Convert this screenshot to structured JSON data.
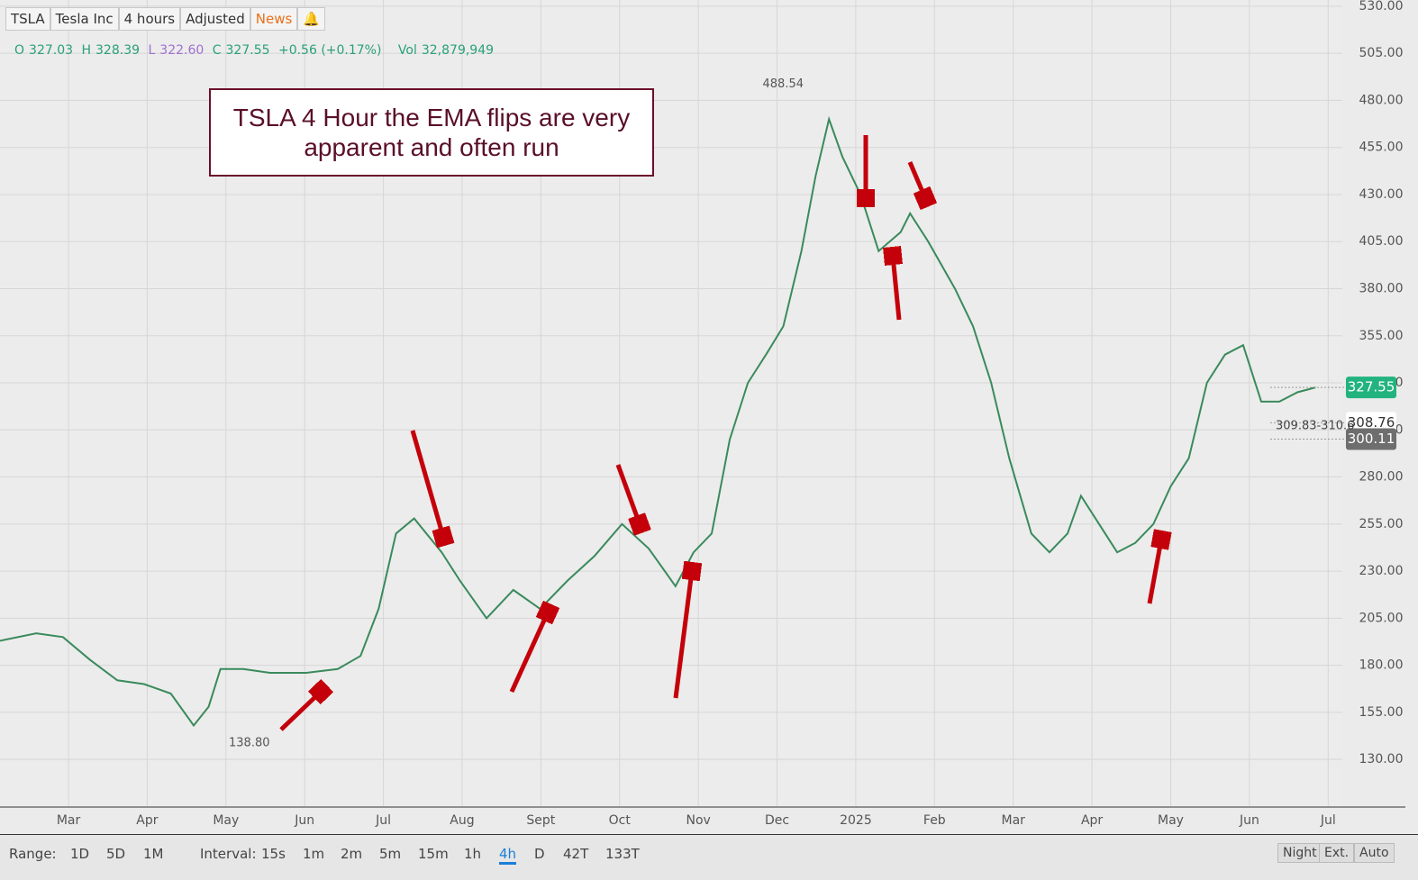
{
  "toolbar": {
    "symbol": "TSLA",
    "name": "Tesla Inc",
    "interval": "4 hours",
    "adjust": "Adjusted",
    "news": "News"
  },
  "quote": {
    "o_label": "O",
    "o": "327.03",
    "h_label": "H",
    "h": "328.39",
    "l_label": "L",
    "l": "322.60",
    "c_label": "C",
    "c": "327.55",
    "change": "+0.56 (+0.17%)",
    "vol_label": "Vol",
    "vol": "32,879,949"
  },
  "chart_data": {
    "type": "line",
    "annotation": "TSLA 4 Hour the EMA flips are very apparent and often run",
    "color": "#3a8a5c",
    "grid": true,
    "x": [
      -0.87,
      -0.41,
      -0.07,
      0.27,
      0.62,
      0.96,
      1.3,
      1.59,
      1.78,
      1.93,
      2.22,
      2.56,
      3.02,
      3.42,
      3.71,
      3.94,
      4.16,
      4.39,
      4.74,
      4.97,
      5.31,
      5.65,
      5.99,
      6.34,
      6.68,
      7.03,
      7.37,
      7.71,
      7.94,
      8.17,
      8.4,
      8.63,
      8.86,
      9.08,
      9.31,
      9.49,
      9.66,
      9.83,
      10.06,
      10.29,
      10.57,
      10.69,
      10.92,
      11.26,
      11.49,
      11.72,
      11.95,
      12.23,
      12.46,
      12.69,
      12.86,
      13.09,
      13.32,
      13.55,
      13.78,
      14.0,
      14.23,
      14.46,
      14.69,
      14.92,
      15.15,
      15.38,
      15.61,
      15.84
    ],
    "values": [
      193,
      197,
      195,
      183,
      172,
      170,
      165,
      148,
      158,
      178,
      178,
      176,
      176,
      178,
      185,
      210,
      250,
      258,
      240,
      225,
      205,
      220,
      210,
      225,
      238,
      255,
      242,
      222,
      240,
      250,
      300,
      330,
      345,
      360,
      400,
      440,
      470,
      450,
      430,
      400,
      410,
      420,
      405,
      380,
      360,
      330,
      290,
      250,
      240,
      250,
      270,
      255,
      240,
      245,
      255,
      275,
      290,
      330,
      345,
      350,
      320,
      320,
      325,
      327.55
    ],
    "xlim": [
      -0.87,
      16.18
    ],
    "ylim": [
      105.2,
      533.3
    ],
    "xticks": [
      {
        "value": 0,
        "label": "Mar"
      },
      {
        "value": 1,
        "label": "Apr"
      },
      {
        "value": 2,
        "label": "May"
      },
      {
        "value": 3,
        "label": "Jun"
      },
      {
        "value": 4,
        "label": "Jul"
      },
      {
        "value": 5,
        "label": "Aug"
      },
      {
        "value": 6,
        "label": "Sept"
      },
      {
        "value": 7,
        "label": "Oct"
      },
      {
        "value": 8,
        "label": "Nov"
      },
      {
        "value": 9,
        "label": "Dec"
      },
      {
        "value": 10,
        "label": "2025"
      },
      {
        "value": 11,
        "label": "Feb"
      },
      {
        "value": 12,
        "label": "Mar"
      },
      {
        "value": 13,
        "label": "Apr"
      },
      {
        "value": 14,
        "label": "May"
      },
      {
        "value": 15,
        "label": "Jun"
      },
      {
        "value": 16,
        "label": "Jul"
      }
    ],
    "yticks": [
      {
        "value": 130,
        "label": "130.00"
      },
      {
        "value": 155,
        "label": "155.00"
      },
      {
        "value": 180,
        "label": "180.00"
      },
      {
        "value": 205,
        "label": "205.00"
      },
      {
        "value": 230,
        "label": "230.00"
      },
      {
        "value": 255,
        "label": "255.00"
      },
      {
        "value": 280,
        "label": "280.00"
      },
      {
        "value": 305,
        "label": "305.00"
      },
      {
        "value": 330,
        "label": "330.00"
      },
      {
        "value": 355,
        "label": "355.00"
      },
      {
        "value": 380,
        "label": "380.00"
      },
      {
        "value": 405,
        "label": "405.00"
      },
      {
        "value": 430,
        "label": "430.00"
      },
      {
        "value": 455,
        "label": "455.00"
      },
      {
        "value": 480,
        "label": "480.00"
      },
      {
        "value": 505,
        "label": "505.00"
      },
      {
        "value": 530,
        "label": "530.00"
      }
    ],
    "high": 488.54,
    "low": {
      "value": 138.8,
      "label": "138.80"
    },
    "price_tags": [
      {
        "value": 327.55,
        "color": "#22b37f"
      },
      {
        "value": 308.76,
        "color": "#ffffff"
      },
      {
        "value": 300.11,
        "color": "#6e6e6e"
      }
    ],
    "band_label": "309.83-310.6"
  },
  "footer": {
    "range_label": "Range:",
    "ranges": [
      "1D",
      "5D",
      "1M"
    ],
    "interval_label": "Interval:",
    "intervals": [
      "15s",
      "1m",
      "2m",
      "5m",
      "15m",
      "1h",
      "4h",
      "D",
      "42T",
      "133T"
    ],
    "modes": [
      "Night",
      "Ext.",
      "Auto"
    ]
  }
}
